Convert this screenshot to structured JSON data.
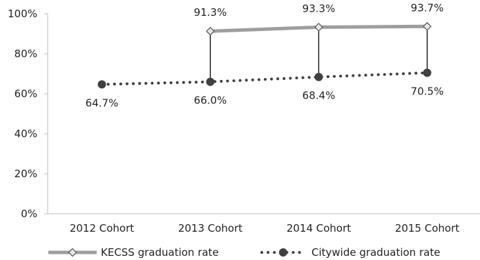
{
  "chart_data": {
    "type": "line",
    "categories": [
      "2012 Cohort",
      "2013 Cohort",
      "2014 Cohort",
      "2015 Cohort"
    ],
    "series": [
      {
        "name": "KECSS graduation rate",
        "values": [
          null,
          91.3,
          93.3,
          93.7
        ],
        "labels": [
          "",
          "91.3%",
          "93.3%",
          "93.7%"
        ],
        "color": "#9e9e9e",
        "marker": "diamond",
        "line_style": "solid"
      },
      {
        "name": "Citywide graduation rate",
        "values": [
          64.7,
          66.0,
          68.4,
          70.5
        ],
        "labels": [
          "64.7%",
          "66.0%",
          "68.4%",
          "70.5%"
        ],
        "color": "#404040",
        "marker": "circle",
        "line_style": "dotted"
      }
    ],
    "y_ticks": [
      "0%",
      "20%",
      "40%",
      "60%",
      "80%",
      "100%"
    ],
    "ylim": [
      0,
      100
    ],
    "drop_lines": true,
    "grid": false,
    "legend": "bottom"
  }
}
